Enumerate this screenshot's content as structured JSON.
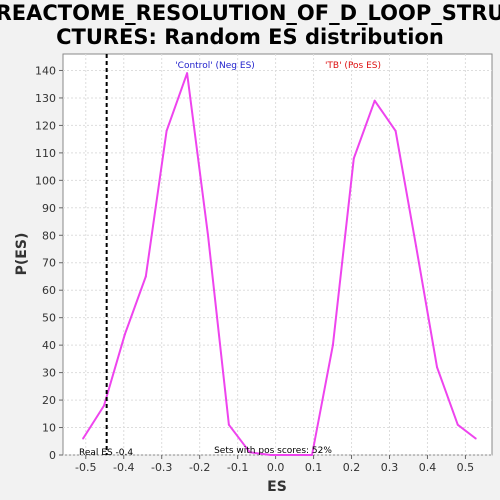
{
  "chart_data": {
    "type": "line",
    "title_line1": "REACTOME_RESOLUTION_OF_D_LOOP_STRU",
    "title_line2": "CTURES: Random ES distribution",
    "xlabel": "ES",
    "ylabel": "P(ES)",
    "xlim": [
      -0.56,
      0.57
    ],
    "ylim": [
      0,
      146
    ],
    "x_ticks": [
      -0.5,
      -0.4,
      -0.3,
      -0.2,
      -0.1,
      0.0,
      0.1,
      0.2,
      0.3,
      0.4,
      0.5
    ],
    "x_tick_labels": [
      "-0.5",
      "-0.4",
      "-0.3",
      "-0.2",
      "-0.1",
      "0.0",
      "0.1",
      "0.2",
      "0.3",
      "0.4",
      "0.5"
    ],
    "y_ticks": [
      0,
      10,
      20,
      30,
      40,
      50,
      60,
      70,
      80,
      90,
      100,
      110,
      120,
      130,
      140
    ],
    "grid": true,
    "series": [
      {
        "color": "#ee44ee",
        "x": [
          -0.507,
          -0.452,
          -0.397,
          -0.342,
          -0.287,
          -0.233,
          -0.178,
          -0.123,
          -0.068,
          -0.013,
          0.042,
          0.096,
          0.151,
          0.206,
          0.261,
          0.316,
          0.37,
          0.425,
          0.48,
          0.527
        ],
        "y": [
          6,
          18,
          44,
          65,
          118,
          139,
          80,
          11,
          1,
          0,
          0,
          0,
          40,
          108,
          129,
          118,
          76,
          32,
          11,
          6
        ]
      }
    ],
    "real_es": -0.4,
    "annotations": {
      "neg_label": "'Control' (Neg ES)",
      "pos_label": "'TB' (Pos ES)",
      "real_es_label": "Real ES -0.4",
      "pos_scores_label": "Sets with pos scores: 52%"
    },
    "colors": {
      "line": "#ee44ee",
      "neg_label": "#2222cc",
      "pos_label": "#dd1111",
      "real_es_line": "#000000",
      "grid": "#dddddd"
    }
  }
}
